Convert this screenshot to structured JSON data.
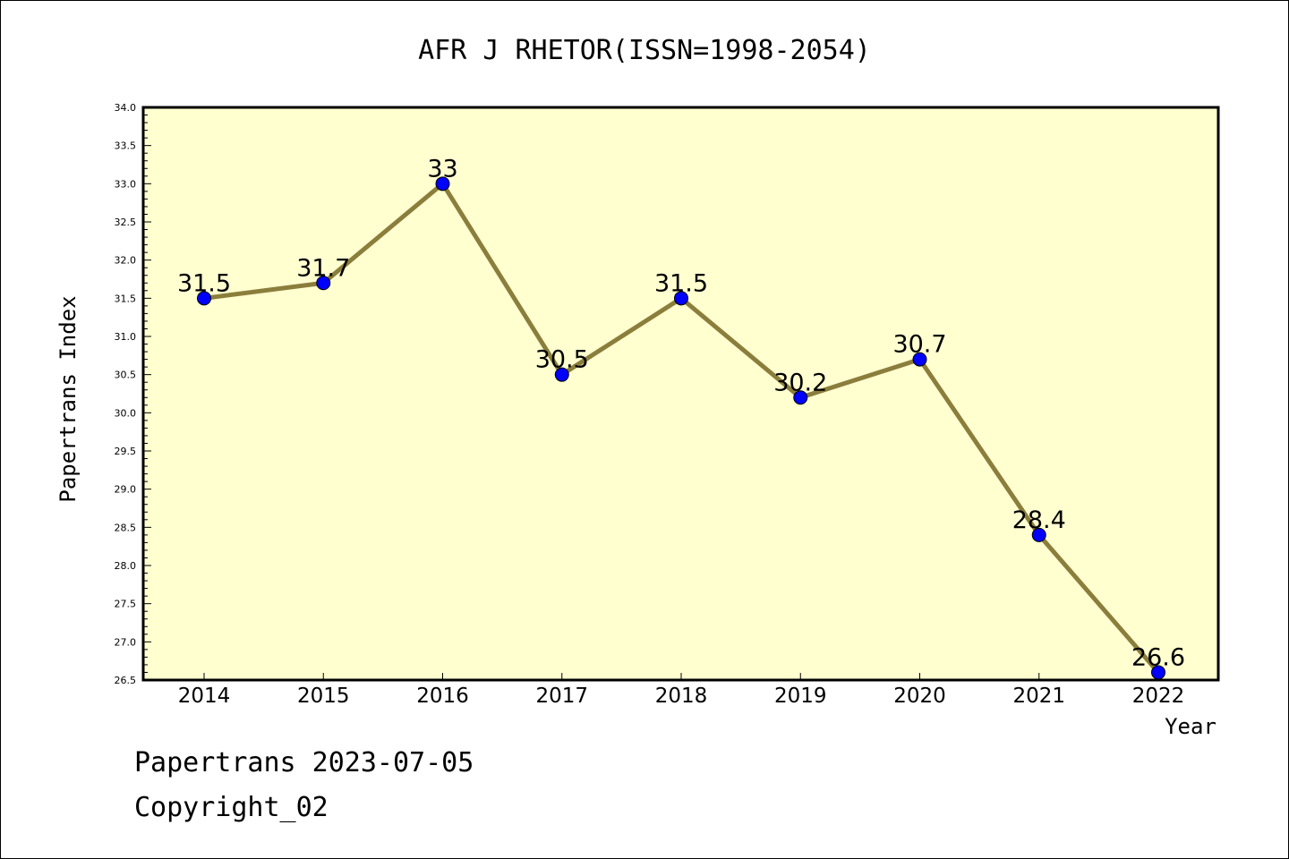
{
  "chart_data": {
    "type": "line",
    "title": "AFR J RHETOR(ISSN=1998-2054)",
    "xlabel": "Year",
    "ylabel": "Papertrans Index",
    "categories": [
      "2014",
      "2015",
      "2016",
      "2017",
      "2018",
      "2019",
      "2020",
      "2021",
      "2022"
    ],
    "values": [
      31.5,
      31.7,
      33,
      30.5,
      31.5,
      30.2,
      30.7,
      28.4,
      26.6
    ],
    "data_labels": [
      "31.5",
      "31.7",
      "33",
      "30.5",
      "31.5",
      "30.2",
      "30.7",
      "28.4",
      "26.6"
    ],
    "ylim": [
      26.5,
      34.0
    ],
    "yticks": [
      "26.5",
      "27.0",
      "27.5",
      "28.0",
      "28.5",
      "29.0",
      "29.5",
      "30.0",
      "30.5",
      "31.0",
      "31.5",
      "32.0",
      "32.5",
      "33.0",
      "33.5",
      "34.0"
    ],
    "grid": false,
    "legend": "none",
    "colors": {
      "plot_background": "#ffffd0",
      "line": "#8b7e3c",
      "marker": "#0000ff"
    }
  },
  "footer": {
    "line1": "Papertrans 2023-07-05",
    "line2": "Copyright_02"
  }
}
